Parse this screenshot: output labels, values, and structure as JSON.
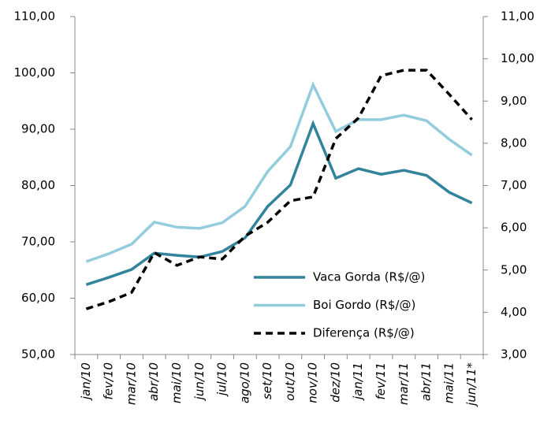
{
  "chart_data": {
    "type": "line",
    "categories": [
      "jan/10",
      "fev/10",
      "mar/10",
      "abr/10",
      "mai/10",
      "jun/10",
      "jul/10",
      "ago/10",
      "set/10",
      "out/10",
      "nov/10",
      "dez/10",
      "jan/11",
      "fev/11",
      "mar/11",
      "abr/11",
      "mai/11",
      "jun/11*"
    ],
    "series": [
      {
        "name": "Vaca Gorda (R$/@)",
        "color": "#31849b",
        "line_style": "solid",
        "values": [
          62.4,
          63.7,
          65.1,
          68.0,
          67.6,
          67.3,
          68.3,
          70.7,
          76.3,
          80.1,
          91.0,
          81.3,
          83.0,
          82.0,
          82.7,
          81.8,
          78.8,
          76.9
        ]
      },
      {
        "name": "Boi Gordo (R$/@)",
        "color": "#93cddd",
        "line_style": "solid",
        "values": [
          66.5,
          67.9,
          69.6,
          73.5,
          72.6,
          72.4,
          73.4,
          76.3,
          82.5,
          86.9,
          97.9,
          89.6,
          91.7,
          91.7,
          92.5,
          91.5,
          88.2,
          85.4
        ]
      },
      {
        "name": "Diferença (R$/@)",
        "color": "#000000",
        "line_style": "dashed",
        "axis": "y2",
        "values": [
          4.08,
          4.25,
          4.47,
          5.41,
          5.11,
          5.31,
          5.26,
          5.8,
          6.13,
          6.64,
          6.73,
          8.11,
          8.6,
          9.6,
          9.73,
          9.73,
          9.16,
          8.56
        ]
      }
    ],
    "ylim": [
      50,
      110
    ],
    "yticks": [
      {
        "value": 50,
        "label": "50,00"
      },
      {
        "value": 60,
        "label": "60,00"
      },
      {
        "value": 70,
        "label": "70,00"
      },
      {
        "value": 80,
        "label": "80,00"
      },
      {
        "value": 90,
        "label": "90,00"
      },
      {
        "value": 100,
        "label": "100,00"
      },
      {
        "value": 110,
        "label": "110,00"
      }
    ],
    "y2lim": [
      3,
      11
    ],
    "y2ticks": [
      {
        "value": 3,
        "label": "3,00"
      },
      {
        "value": 4,
        "label": "4,00"
      },
      {
        "value": 5,
        "label": "5,00"
      },
      {
        "value": 6,
        "label": "6,00"
      },
      {
        "value": 7,
        "label": "7,00"
      },
      {
        "value": 8,
        "label": "8,00"
      },
      {
        "value": 9,
        "label": "9,00"
      },
      {
        "value": 10,
        "label": "10,00"
      },
      {
        "value": 11,
        "label": "11,00"
      }
    ],
    "grid": false,
    "legend": "lower-right"
  }
}
